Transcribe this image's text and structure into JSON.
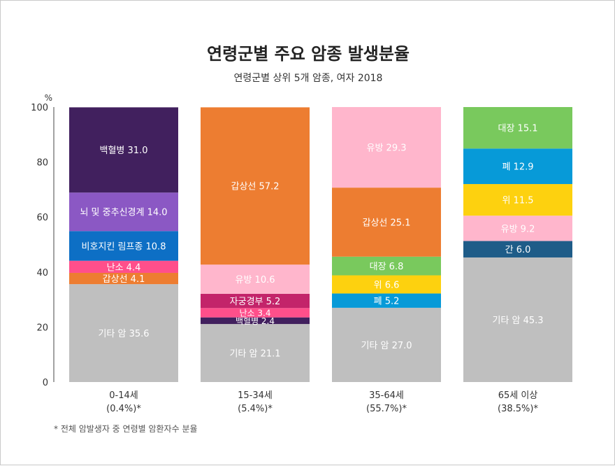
{
  "title": "연령군별 주요 암종 발생분율",
  "subtitle": "연령군별 상위 5개 암종, 여자 2018",
  "footnote": "* 전체 암발생자 중 연령별 암환자수 분율",
  "chart_data": {
    "type": "bar",
    "stacked": true,
    "ylabel": "%",
    "ylim": [
      0,
      100
    ],
    "yticks": [
      0,
      20,
      40,
      60,
      80,
      100
    ],
    "grid": false,
    "categories": [
      {
        "label": "0-14세",
        "sublabel": "(0.4%)*"
      },
      {
        "label": "15-34세",
        "sublabel": "(5.4%)*"
      },
      {
        "label": "35-64세",
        "sublabel": "(55.7%)*"
      },
      {
        "label": "65세 이상",
        "sublabel": "(38.5%)*"
      }
    ],
    "stacks": [
      [
        {
          "name": "기타 암",
          "value": 35.6,
          "color": "#bfbfbf"
        },
        {
          "name": "갑상선",
          "value": 4.1,
          "color": "#ed7d31"
        },
        {
          "name": "난소",
          "value": 4.4,
          "color": "#ff4f8b"
        },
        {
          "name": "비호지킨 림프종",
          "value": 10.8,
          "color": "#0d6fc5"
        },
        {
          "name": "뇌 및 중추신경계",
          "value": 14.0,
          "color": "#8b58c4"
        },
        {
          "name": "백혈병",
          "value": 31.0,
          "color": "#41205e"
        }
      ],
      [
        {
          "name": "기타 암",
          "value": 21.1,
          "color": "#bfbfbf"
        },
        {
          "name": "백혈병",
          "value": 2.4,
          "color": "#41205e"
        },
        {
          "name": "난소",
          "value": 3.4,
          "color": "#ff4f8b"
        },
        {
          "name": "자궁경부",
          "value": 5.2,
          "color": "#c3246a"
        },
        {
          "name": "유방",
          "value": 10.6,
          "color": "#ffb6cc"
        },
        {
          "name": "갑상선",
          "value": 57.2,
          "color": "#ed7d31"
        }
      ],
      [
        {
          "name": "기타 암",
          "value": 27.0,
          "color": "#bfbfbf"
        },
        {
          "name": "폐",
          "value": 5.2,
          "color": "#079ad8"
        },
        {
          "name": "위",
          "value": 6.6,
          "color": "#fdd10f"
        },
        {
          "name": "대장",
          "value": 6.8,
          "color": "#79c95d"
        },
        {
          "name": "갑상선",
          "value": 25.1,
          "color": "#ed7d31"
        },
        {
          "name": "유방",
          "value": 29.3,
          "color": "#ffb6cc"
        }
      ],
      [
        {
          "name": "기타 암",
          "value": 45.3,
          "color": "#bfbfbf"
        },
        {
          "name": "간",
          "value": 6.0,
          "color": "#1e5c88"
        },
        {
          "name": "유방",
          "value": 9.2,
          "color": "#ffb6cc"
        },
        {
          "name": "위",
          "value": 11.5,
          "color": "#fdd10f"
        },
        {
          "name": "폐",
          "value": 12.9,
          "color": "#079ad8"
        },
        {
          "name": "대장",
          "value": 15.1,
          "color": "#79c95d"
        }
      ]
    ]
  }
}
